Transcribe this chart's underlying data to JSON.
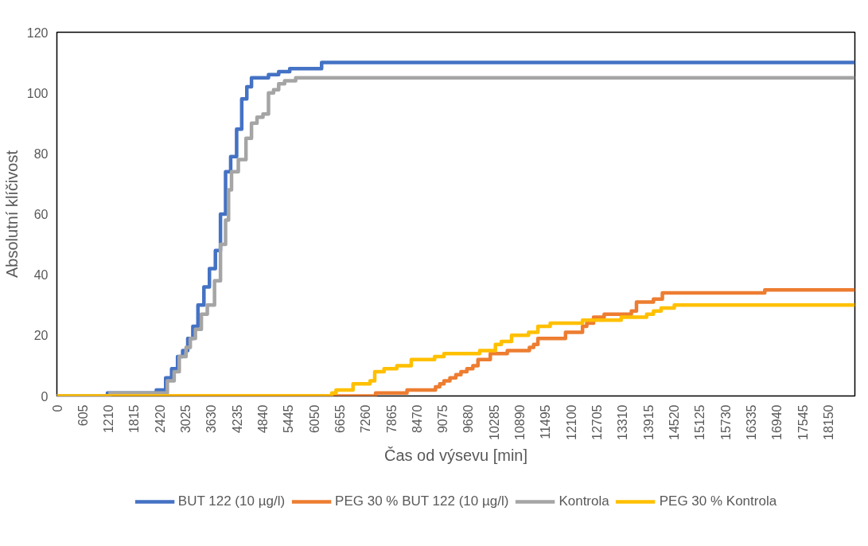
{
  "chart_data": {
    "type": "step",
    "xlabel": "Čas od výsevu [min]",
    "ylabel": "Absolutní klíčivost",
    "xlim": [
      0,
      18780
    ],
    "xticks": [
      0,
      605,
      1210,
      1815,
      2420,
      3025,
      3630,
      4235,
      4840,
      5445,
      6050,
      6655,
      7260,
      7865,
      8470,
      9075,
      9680,
      10285,
      10890,
      11495,
      12100,
      12705,
      13310,
      13915,
      14520,
      15125,
      15730,
      16335,
      16940,
      17545,
      18150
    ],
    "ylim": [
      0,
      120
    ],
    "yticks": [
      0,
      20,
      40,
      60,
      80,
      100,
      120
    ],
    "grid": false,
    "legend": "bottom",
    "line_style": "solid",
    "marker": "none",
    "series": [
      {
        "name": "BUT 122 (10 µg/l)",
        "color": "#4472c4",
        "x": [
          0,
          1190,
          2340,
          2560,
          2700,
          2840,
          2960,
          3080,
          3200,
          3320,
          3460,
          3590,
          3730,
          3850,
          3970,
          4090,
          4230,
          4350,
          4470,
          4580,
          4980,
          5220,
          5480,
          6230,
          18780
        ],
        "values": [
          0,
          1,
          2,
          6,
          9,
          13,
          15,
          19,
          23,
          30,
          36,
          42,
          48,
          60,
          74,
          79,
          88,
          98,
          102,
          105,
          106,
          107,
          108,
          110,
          110
        ]
      },
      {
        "name": "PEG 30 % BUT 122 (10 µg/l)",
        "color": "#ed7d31",
        "x": [
          0,
          7500,
          8240,
          8910,
          9010,
          9110,
          9250,
          9390,
          9510,
          9650,
          9790,
          9910,
          10200,
          10600,
          11120,
          11220,
          11320,
          11970,
          12370,
          12470,
          12630,
          12880,
          13520,
          13640,
          14040,
          14250,
          16660,
          18780
        ],
        "values": [
          0,
          1,
          2,
          3,
          4,
          5,
          6,
          7,
          8,
          9,
          10,
          12,
          14,
          15,
          16,
          17,
          19,
          21,
          23,
          24,
          26,
          27,
          28,
          31,
          32,
          34,
          35,
          35
        ]
      },
      {
        "name": "Kontrola",
        "color": "#a5a5a5",
        "x": [
          0,
          1250,
          2600,
          2760,
          2880,
          3040,
          3140,
          3260,
          3400,
          3540,
          3710,
          3850,
          3970,
          4040,
          4110,
          4270,
          4450,
          4580,
          4710,
          4850,
          4980,
          5100,
          5220,
          5360,
          5620,
          18780
        ],
        "values": [
          0,
          1,
          5,
          8,
          13,
          16,
          19,
          22,
          27,
          30,
          38,
          50,
          58,
          68,
          74,
          78,
          85,
          90,
          92,
          93,
          100,
          101,
          103,
          104,
          105,
          105
        ]
      },
      {
        "name": "PEG 30 % Kontrola",
        "color": "#ffc000",
        "x": [
          0,
          6470,
          6570,
          6970,
          7370,
          7480,
          7700,
          8000,
          8340,
          8890,
          9110,
          9950,
          10320,
          10460,
          10700,
          11100,
          11320,
          11610,
          12370,
          13280,
          13880,
          14040,
          14220,
          14530,
          18780
        ],
        "values": [
          0,
          1,
          2,
          4,
          5,
          8,
          9,
          10,
          12,
          13,
          14,
          15,
          17,
          18,
          20,
          21,
          23,
          24,
          25,
          26,
          27,
          28,
          29,
          30,
          30
        ]
      }
    ]
  }
}
